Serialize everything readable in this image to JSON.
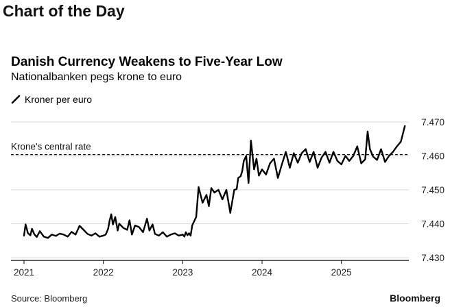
{
  "header": {
    "title": "Chart of the Day"
  },
  "chart_data": {
    "type": "line",
    "title": "Danish Currency Weakens to Five-Year Low",
    "subtitle": "Nationalbanken pegs krone to euro",
    "legend": [
      {
        "label": "Kroner per euro",
        "color": "#000000"
      }
    ],
    "xlabel": "",
    "ylabel": "Kroner per euro",
    "xlim": [
      2021.0,
      2025.85
    ],
    "ylim": [
      7.43,
      7.47
    ],
    "yticks": [
      7.43,
      7.44,
      7.45,
      7.46,
      7.47
    ],
    "ytick_labels": [
      "7.430",
      "7.440",
      "7.450",
      "7.460",
      "7.470"
    ],
    "xticks": [
      2021,
      2022,
      2023,
      2024,
      2025
    ],
    "xtick_labels": [
      "2021",
      "2022",
      "2023",
      "2024",
      "2025"
    ],
    "reference_line": {
      "label": "Krone's central rate",
      "value": 7.46038,
      "style": "dashed"
    },
    "series": [
      {
        "name": "Kroner per euro",
        "x": [
          2021.0,
          2021.02,
          2021.05,
          2021.08,
          2021.1,
          2021.13,
          2021.16,
          2021.2,
          2021.25,
          2021.3,
          2021.35,
          2021.4,
          2021.45,
          2021.5,
          2021.55,
          2021.6,
          2021.65,
          2021.7,
          2021.75,
          2021.8,
          2021.85,
          2021.9,
          2021.95,
          2022.0,
          2022.03,
          2022.06,
          2022.08,
          2022.1,
          2022.12,
          2022.15,
          2022.18,
          2022.2,
          2022.25,
          2022.3,
          2022.33,
          2022.36,
          2022.4,
          2022.45,
          2022.5,
          2022.55,
          2022.58,
          2022.62,
          2022.65,
          2022.7,
          2022.75,
          2022.8,
          2022.85,
          2022.9,
          2022.95,
          2023.0,
          2023.02,
          2023.04,
          2023.06,
          2023.08,
          2023.1,
          2023.12,
          2023.14,
          2023.17,
          2023.2,
          2023.25,
          2023.3,
          2023.33,
          2023.36,
          2023.4,
          2023.45,
          2023.5,
          2023.55,
          2023.6,
          2023.65,
          2023.68,
          2023.7,
          2023.73,
          2023.75,
          2023.77,
          2023.8,
          2023.83,
          2023.86,
          2023.9,
          2023.93,
          2023.96,
          2024.0,
          2024.05,
          2024.1,
          2024.15,
          2024.2,
          2024.25,
          2024.3,
          2024.35,
          2024.4,
          2024.45,
          2024.5,
          2024.55,
          2024.6,
          2024.65,
          2024.7,
          2024.75,
          2024.8,
          2024.85,
          2024.9,
          2024.95,
          2025.0,
          2025.05,
          2025.1,
          2025.15,
          2025.2,
          2025.25,
          2025.3,
          2025.33,
          2025.36,
          2025.4,
          2025.45,
          2025.5,
          2025.55,
          2025.6,
          2025.65,
          2025.7,
          2025.75,
          2025.8
        ],
        "values": [
          7.4365,
          7.4398,
          7.4372,
          7.4366,
          7.4385,
          7.4369,
          7.4361,
          7.4378,
          7.4362,
          7.4358,
          7.4368,
          7.4364,
          7.4371,
          7.4368,
          7.4362,
          7.4376,
          7.4368,
          7.4394,
          7.4382,
          7.437,
          7.4365,
          7.4372,
          7.4362,
          7.4365,
          7.4368,
          7.4385,
          7.441,
          7.4428,
          7.4398,
          7.442,
          7.438,
          7.44,
          7.4388,
          7.4382,
          7.441,
          7.4368,
          7.4395,
          7.439,
          7.4375,
          7.4415,
          7.438,
          7.4398,
          7.437,
          7.4365,
          7.4375,
          7.4362,
          7.4368,
          7.4372,
          7.4365,
          7.4368,
          7.4362,
          7.4375,
          7.4366,
          7.4372,
          7.4365,
          7.4395,
          7.4405,
          7.442,
          7.4508,
          7.4462,
          7.4485,
          7.4452,
          7.4505,
          7.4492,
          7.45,
          7.4472,
          7.45,
          7.4432,
          7.45,
          7.4502,
          7.4535,
          7.454,
          7.4555,
          7.4585,
          7.46,
          7.452,
          7.4645,
          7.456,
          7.4592,
          7.4542,
          7.456,
          7.4545,
          7.4578,
          7.4592,
          7.4535,
          7.4575,
          7.4612,
          7.4565,
          7.4608,
          7.458,
          7.4608,
          7.462,
          7.4582,
          7.4612,
          7.4565,
          7.4595,
          7.4612,
          7.458,
          7.4612,
          7.4585,
          7.4575,
          7.46,
          7.4585,
          7.46,
          7.4628,
          7.4578,
          7.459,
          7.4672,
          7.462,
          7.4598,
          7.4588,
          7.462,
          7.4582,
          7.46,
          7.4612,
          7.4628,
          7.4642,
          7.4688
        ]
      }
    ]
  },
  "footer": {
    "source": "Source: Bloomberg",
    "brand": "Bloomberg"
  }
}
